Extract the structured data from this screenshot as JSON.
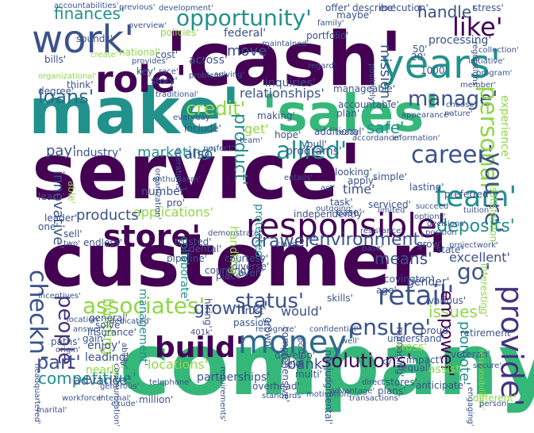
{
  "palette": {
    "dark_purple": "#440154",
    "purple": "#46327e",
    "indigo": "#3b528b",
    "blue": "#31688e",
    "teal": "#21918c",
    "green": "#35b779",
    "lime": "#8fd744",
    "yellow": "#c8d528"
  },
  "words": [
    {
      "t": "service'",
      "c": "dark_purple"
    },
    {
      "t": "customer'",
      "c": "dark_purple"
    },
    {
      "t": "'cash'",
      "c": "dark_purple"
    },
    {
      "t": "company'",
      "c": "green"
    },
    {
      "t": "make'",
      "c": "teal"
    },
    {
      "t": "'sales'",
      "c": "green"
    },
    {
      "t": "work'",
      "c": "indigo"
    },
    {
      "t": "store'",
      "c": "dark_purple"
    },
    {
      "t": "responsible'",
      "c": "dark_purple"
    },
    {
      "t": "build'",
      "c": "dark_purple"
    },
    {
      "t": "money'",
      "c": "blue"
    },
    {
      "t": "years'",
      "c": "teal"
    },
    {
      "t": "role'",
      "c": "dark_purple"
    },
    {
      "t": "opportunity'",
      "c": "teal"
    },
    {
      "t": "provide'",
      "c": "purple"
    },
    {
      "t": "associates'",
      "c": "lime"
    },
    {
      "t": "loans'",
      "c": "blue"
    },
    {
      "t": "team'",
      "c": "teal"
    },
    {
      "t": "allied'",
      "c": "teal"
    },
    {
      "t": "status'",
      "c": "indigo"
    },
    {
      "t": "retail'",
      "c": "indigo"
    },
    {
      "t": "ensure'",
      "c": "indigo"
    },
    {
      "t": "checkn'",
      "c": "indigo"
    },
    {
      "t": "part'",
      "c": "indigo"
    },
    {
      "t": "solutions'",
      "c": "dark_purple"
    },
    {
      "t": "manage'",
      "c": "indigo"
    },
    {
      "t": "credit'",
      "c": "lime"
    },
    {
      "t": "like'",
      "c": "dark_purple"
    },
    {
      "t": "career'",
      "c": "indigo"
    },
    {
      "t": "personal'",
      "c": "lime"
    },
    {
      "t": "growing'",
      "c": "indigo"
    },
    {
      "t": "you're'",
      "c": "indigo"
    },
    {
      "t": "go'",
      "c": "indigo"
    },
    {
      "t": "environment'",
      "c": "indigo"
    },
    {
      "t": "drawer'",
      "c": "indigo"
    },
    {
      "t": "marketing'",
      "c": "teal"
    },
    {
      "t": "people'",
      "c": "purple"
    },
    {
      "t": "competitive'",
      "c": "teal"
    },
    {
      "t": "deposits'",
      "c": "teal"
    },
    {
      "t": "means'",
      "c": "indigo"
    },
    {
      "t": "issues'",
      "c": "lime"
    },
    {
      "t": "innovative'",
      "c": "indigo"
    },
    {
      "t": "product'",
      "c": "teal"
    },
    {
      "t": "safe'",
      "c": "teal"
    },
    {
      "t": "programs'",
      "c": "indigo"
    },
    {
      "t": "finances'",
      "c": "teal"
    },
    {
      "t": "handle'",
      "c": "indigo"
    },
    {
      "t": "mission'",
      "c": "indigo"
    },
    {
      "t": "relationships'",
      "c": "indigo"
    },
    {
      "t": "empower'",
      "c": "dark_purple"
    },
    {
      "t": "promote'",
      "c": "teal"
    },
    {
      "t": "bank'",
      "c": "indigo"
    },
    {
      "t": "time'",
      "c": "indigo"
    },
    {
      "t": "pay'",
      "c": "indigo"
    },
    {
      "t": "industry'",
      "c": "indigo"
    },
    {
      "t": "also'",
      "c": "indigo"
    },
    {
      "t": "applications'",
      "c": "lime"
    },
    {
      "t": "products'",
      "c": "indigo"
    },
    {
      "t": "building'",
      "c": "lime"
    },
    {
      "t": "advance'",
      "c": "indigo"
    },
    {
      "t": "locations'",
      "c": "lime"
    },
    {
      "t": "partnerships'",
      "c": "indigo"
    },
    {
      "t": "enjoy'",
      "c": "indigo"
    },
    {
      "t": "leading'",
      "c": "indigo"
    },
    {
      "t": "nearly'",
      "c": "lime"
    },
    {
      "t": "inquiries'",
      "c": "indigo"
    },
    {
      "t": "across'",
      "c": "indigo"
    },
    {
      "t": "move'",
      "c": "indigo"
    },
    {
      "t": "processing'",
      "c": "indigo"
    },
    {
      "t": "get'",
      "c": "lime"
    },
    {
      "t": "hope'",
      "c": "indigo"
    },
    {
      "t": "would'",
      "c": "indigo"
    },
    {
      "t": "excellent'",
      "c": "indigo"
    },
    {
      "t": "state'",
      "c": "indigo"
    },
    {
      "t": "grow'",
      "c": "indigo"
    },
    {
      "t": "gender'",
      "c": "indigo"
    },
    {
      "t": "covington'",
      "c": "indigo"
    },
    {
      "t": "various'",
      "c": "indigo"
    },
    {
      "t": "skills'",
      "c": "indigo"
    },
    {
      "t": "collaborate'",
      "c": "teal"
    },
    {
      "t": "trusted'",
      "c": "indigo"
    },
    {
      "t": "endless'",
      "c": "indigo"
    },
    {
      "t": "pipeline'",
      "c": "indigo"
    },
    {
      "t": "place'",
      "c": "indigo"
    },
    {
      "t": "courtesy'",
      "c": "indigo"
    },
    {
      "t": "diverse'",
      "c": "indigo"
    },
    {
      "t": "overhead'",
      "c": "indigo"
    },
    {
      "t": "stores'",
      "c": "indigo"
    },
    {
      "t": "different'",
      "c": "lime"
    },
    {
      "t": "million'",
      "c": "indigo"
    },
    {
      "t": "workforce'",
      "c": "indigo"
    },
    {
      "t": "internal'",
      "c": "indigo"
    },
    {
      "t": "execution'",
      "c": "indigo"
    },
    {
      "t": "stress'",
      "c": "indigo"
    },
    {
      "t": "maybe'",
      "c": "indigo"
    },
    {
      "t": "policies'",
      "c": "lime"
    },
    {
      "t": "cost'",
      "c": "indigo"
    },
    {
      "t": "key'",
      "c": "indigo"
    },
    {
      "t": "story'",
      "c": "indigo"
    },
    {
      "t": "think'",
      "c": "indigo"
    },
    {
      "t": "degree'",
      "c": "indigo"
    },
    {
      "t": "bills'",
      "c": "indigo"
    },
    {
      "t": "federal'",
      "c": "indigo"
    },
    {
      "t": "include'",
      "c": "indigo"
    },
    {
      "t": "making'",
      "c": "indigo"
    },
    {
      "t": "ready'",
      "c": "indigo"
    },
    {
      "t": "additional'",
      "c": "indigo"
    },
    {
      "t": "simple'",
      "c": "indigo"
    },
    {
      "t": "lasting'",
      "c": "indigo"
    },
    {
      "t": "preferred'",
      "c": "indigo"
    },
    {
      "t": "serviced'",
      "c": "indigo"
    },
    {
      "t": "task'",
      "c": "indigo"
    },
    {
      "t": "looking'",
      "c": "indigo"
    },
    {
      "t": "ease'",
      "c": "indigo"
    },
    {
      "t": "independently'",
      "c": "indigo"
    },
    {
      "t": "resistance'",
      "c": "indigo"
    },
    {
      "t": "demonstrate'",
      "c": "indigo"
    },
    {
      "t": "class'",
      "c": "indigo"
    },
    {
      "t": "base'",
      "c": "indigo"
    },
    {
      "t": "limited'",
      "c": "indigo"
    },
    {
      "t": "position'",
      "c": "indigo"
    },
    {
      "t": "options'",
      "c": "indigo"
    },
    {
      "t": "succeed'",
      "c": "indigo"
    },
    {
      "t": "experience'",
      "c": "lime"
    },
    {
      "t": "satisfaction'",
      "c": "lime"
    },
    {
      "t": "accountable'",
      "c": "indigo"
    },
    {
      "t": "20'",
      "c": "indigo"
    },
    {
      "t": "plan'",
      "c": "indigo"
    },
    {
      "t": "youll'",
      "c": "indigo"
    },
    {
      "t": "1000'",
      "c": "indigo"
    },
    {
      "t": "50'",
      "c": "indigo"
    },
    {
      "t": "sounds'",
      "c": "indigo"
    },
    {
      "t": "national'",
      "c": "lime"
    },
    {
      "t": "create'",
      "c": "lime"
    },
    {
      "t": "provides'",
      "c": "indigo"
    },
    {
      "t": "organizational'",
      "c": "lime"
    },
    {
      "t": "everyday'",
      "c": "indigo"
    },
    {
      "t": "number'",
      "c": "indigo"
    },
    {
      "t": "dental'",
      "c": "indigo"
    },
    {
      "t": "management'",
      "c": "teal"
    },
    {
      "t": "counting'",
      "c": "indigo"
    },
    {
      "t": "hiring'",
      "c": "indigo"
    },
    {
      "t": "gain'",
      "c": "indigo"
    },
    {
      "t": "insurance'",
      "c": "indigo"
    },
    {
      "t": "general'",
      "c": "indigo"
    },
    {
      "t": "solve'",
      "c": "indigo"
    },
    {
      "t": "answer'",
      "c": "indigo"
    },
    {
      "t": "dedicated'",
      "c": "indigo"
    },
    {
      "t": "telephone'",
      "c": "indigo"
    },
    {
      "t": "generous'",
      "c": "indigo"
    },
    {
      "t": "cross'",
      "c": "lime"
    },
    {
      "t": "assist'",
      "c": "lime"
    },
    {
      "t": "equal'",
      "c": "indigo"
    },
    {
      "t": "impact'",
      "c": "indigo"
    },
    {
      "t": "anticipate'",
      "c": "indigo"
    },
    {
      "t": "proud'",
      "c": "indigo"
    },
    {
      "t": "understand'",
      "c": "indigo"
    },
    {
      "t": "veteran'",
      "c": "indigo"
    },
    {
      "t": "retirement'",
      "c": "indigo"
    },
    {
      "t": "plans'",
      "c": "indigo"
    },
    {
      "t": "motivation'",
      "c": "indigo"
    },
    {
      "t": "standards'",
      "c": "indigo"
    },
    {
      "t": "develop'",
      "c": "indigo"
    },
    {
      "t": "held'",
      "c": "indigo"
    },
    {
      "t": "multi'",
      "c": "indigo"
    },
    {
      "t": "nonjudgmental'",
      "c": "indigo"
    },
    {
      "t": "managing'",
      "c": "indigo"
    },
    {
      "t": "passion'",
      "c": "indigo"
    },
    {
      "t": "age'",
      "c": "indigo"
    },
    {
      "t": "trust'",
      "c": "indigo"
    },
    {
      "t": "offer'",
      "c": "indigo"
    },
    {
      "t": "describe'",
      "c": "indigo"
    },
    {
      "t": "accountabilities'",
      "c": "indigo"
    },
    {
      "t": "previous'",
      "c": "indigo"
    },
    {
      "t": "development'",
      "c": "indigo"
    },
    {
      "t": "collection'",
      "c": "indigo"
    },
    {
      "t": "portfolio'",
      "c": "indigo"
    },
    {
      "t": "family'",
      "c": "indigo"
    },
    {
      "t": "regard'",
      "c": "indigo"
    },
    {
      "t": "overview'",
      "c": "indigo"
    },
    {
      "t": "initiative'",
      "c": "indigo"
    },
    {
      "t": "regulations'",
      "c": "indigo"
    },
    {
      "t": "positively'",
      "c": "indigo"
    },
    {
      "t": "program'",
      "c": "indigo"
    },
    {
      "t": "member'",
      "c": "indigo"
    },
    {
      "t": "choose'",
      "c": "indigo"
    },
    {
      "t": "nature'",
      "c": "indigo"
    },
    {
      "t": "appearance'",
      "c": "indigo"
    },
    {
      "t": "information'",
      "c": "indigo"
    },
    {
      "t": "accordance'",
      "c": "indigo"
    },
    {
      "t": "tuition'",
      "c": "indigo"
    },
    {
      "t": "exude'",
      "c": "indigo"
    },
    {
      "t": "location'",
      "c": "indigo"
    },
    {
      "t": "origin'",
      "c": "indigo"
    },
    {
      "t": "paths'",
      "c": "indigo"
    },
    {
      "t": "leader'",
      "c": "indigo"
    },
    {
      "t": "learn'",
      "c": "indigo"
    },
    {
      "t": "able'",
      "c": "lime"
    },
    {
      "t": "sell'",
      "c": "indigo"
    },
    {
      "t": "one'",
      "c": "indigo"
    },
    {
      "t": "two'",
      "c": "indigo"
    },
    {
      "t": "marital'",
      "c": "indigo"
    },
    {
      "t": "headquartered'",
      "c": "indigo"
    },
    {
      "t": "incentives'",
      "c": "indigo"
    },
    {
      "t": "401k'",
      "c": "indigo"
    },
    {
      "t": "recognize'",
      "c": "indigo"
    },
    {
      "t": "protected'",
      "c": "teal"
    },
    {
      "t": "handling'",
      "c": "lime"
    },
    {
      "t": "pro'",
      "c": "indigo"
    },
    {
      "t": "enthusiasm'",
      "c": "indigo"
    },
    {
      "t": "apply'",
      "c": "indigo"
    },
    {
      "t": "act'",
      "c": "indigo"
    },
    {
      "t": "entails'",
      "c": "indigo"
    },
    {
      "t": "outgoing'",
      "c": "indigo"
    },
    {
      "t": "traditional'",
      "c": "indigo"
    },
    {
      "t": "team'",
      "c": "indigo"
    },
    {
      "t": "even'",
      "c": "indigo"
    },
    {
      "t": "comprehensive'",
      "c": "indigo"
    },
    {
      "t": "grown'",
      "c": "indigo"
    },
    {
      "t": "direct'",
      "c": "indigo"
    },
    {
      "t": "advantage'",
      "c": "indigo"
    },
    {
      "t": "ky'",
      "c": "indigo"
    },
    {
      "t": "posting'",
      "c": "indigo"
    },
    {
      "t": "confidential'",
      "c": "indigo"
    },
    {
      "t": "requirements'",
      "c": "indigo"
    },
    {
      "t": "interesting'",
      "c": "lime"
    },
    {
      "t": "responsibilities'",
      "c": "lime"
    },
    {
      "t": "secure'",
      "c": "indigo"
    },
    {
      "t": "engaging'",
      "c": "indigo"
    },
    {
      "t": "person'",
      "c": "indigo"
    },
    {
      "t": "well'",
      "c": "indigo"
    },
    {
      "t": "ability'",
      "c": "indigo"
    },
    {
      "t": "communication'",
      "c": "indigo"
    },
    {
      "t": "transactions'",
      "c": "indigo"
    },
    {
      "t": "race'",
      "c": "indigo"
    },
    {
      "t": "problem'",
      "c": "indigo"
    },
    {
      "t": "operations'",
      "c": "indigo"
    },
    {
      "t": "organization'",
      "c": "indigo"
    },
    {
      "t": "solving'",
      "c": "indigo"
    },
    {
      "t": "maintained'",
      "c": "indigo"
    },
    {
      "t": "manageable'",
      "c": "indigo"
    },
    {
      "t": "decisions'",
      "c": "indigo"
    },
    {
      "t": "projectwork'",
      "c": "indigo"
    },
    {
      "t": "perfect'",
      "c": "indigo"
    }
  ]
}
